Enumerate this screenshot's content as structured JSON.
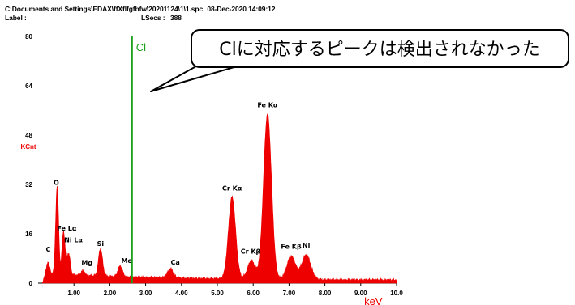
{
  "header": {
    "path_line": "C:Documents and Settings\\EDAX\\ffXflfgfbfw\\20201124\\1\\1.spc",
    "date": "08-Dec-2020 14:09:12",
    "label_key": "Label :",
    "lsec_key": "LSecs :",
    "lsec_value": "388"
  },
  "callout": {
    "text": "Clに対応するピークは検出されなかった"
  },
  "colors": {
    "spectrum": "#ee0000",
    "marker": "#1aa01a",
    "axis_unit": "#ee0000"
  },
  "chart_data": {
    "type": "area",
    "title": "",
    "ylabel": "KCnt",
    "xlabel": "keV",
    "xlim": [
      0.0,
      10.0
    ],
    "ylim": [
      0,
      80
    ],
    "x_ticks": [
      "1.00",
      "2.00",
      "3.00",
      "4.00",
      "5.00",
      "6.00",
      "7.00",
      "8.00",
      "9.00",
      "10.0"
    ],
    "y_ticks": [
      "0",
      "16",
      "32",
      "48",
      "64",
      "80"
    ],
    "marker_line": {
      "label": "Cl",
      "x": 2.62
    },
    "peaks": [
      {
        "label": "C",
        "x": 0.28,
        "y": 5.5
      },
      {
        "label": "O",
        "x": 0.53,
        "y": 30
      },
      {
        "label": "Fe Lα",
        "x": 0.71,
        "y": 15.5
      },
      {
        "label": "Ni Lα",
        "x": 0.85,
        "y": 8.5
      },
      {
        "label": "Mg",
        "x": 1.25,
        "y": 3.0
      },
      {
        "label": "Si",
        "x": 1.74,
        "y": 10.5
      },
      {
        "label": "Mo",
        "x": 2.29,
        "y": 5.0
      },
      {
        "label": "Ca",
        "x": 3.69,
        "y": 4.5
      },
      {
        "label": "Cr Kα",
        "x": 5.41,
        "y": 28
      },
      {
        "label": "Cr Kβ",
        "x": 5.95,
        "y": 7.5
      },
      {
        "label": "Fe Kα",
        "x": 6.4,
        "y": 55
      },
      {
        "label": "Fe Kβ",
        "x": 7.06,
        "y": 9.0
      },
      {
        "label": "Ni",
        "x": 7.48,
        "y": 9.5
      }
    ]
  }
}
